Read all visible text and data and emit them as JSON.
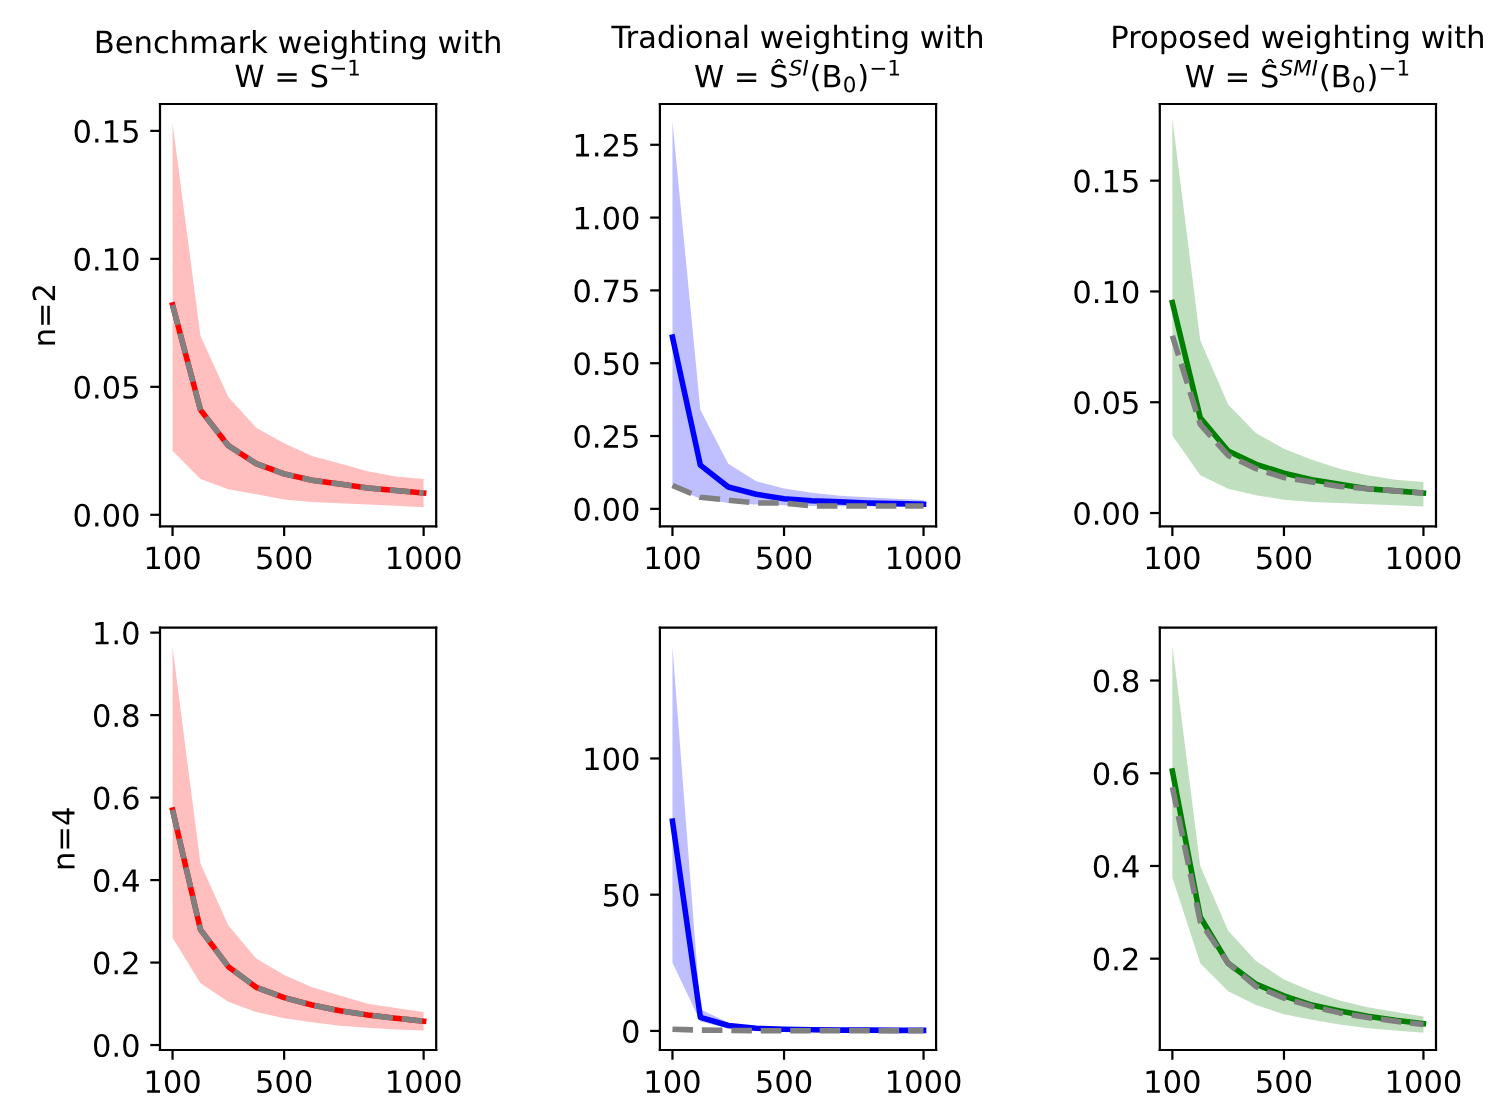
{
  "chart_data": [
    {
      "type": "line",
      "title": "Benchmark weighting with\nW = S$^{−1}$",
      "ylabel": "n=2",
      "x": [
        100,
        200,
        300,
        400,
        500,
        600,
        700,
        800,
        900,
        1000
      ],
      "xlim": [
        55,
        1045
      ],
      "xticks": [
        100,
        500,
        1000
      ],
      "ylim": [
        -0.0045,
        0.1605
      ],
      "yticks": [
        {
          "value": 0,
          "label": "0.00"
        },
        {
          "value": 0.05,
          "label": "0.05"
        },
        {
          "value": 0.1,
          "label": "0.10"
        },
        {
          "value": 0.15,
          "label": "0.15"
        }
      ],
      "grid": false,
      "series": [
        {
          "color": "#ff0000",
          "line_style": "solid",
          "values": [
            0.082,
            0.041,
            0.027,
            0.02,
            0.016,
            0.0135,
            0.012,
            0.0105,
            0.0095,
            0.0085
          ],
          "lower": [
            0.025,
            0.014,
            0.01,
            0.008,
            0.006,
            0.005,
            0.0045,
            0.004,
            0.0035,
            0.003
          ],
          "upper": [
            0.153,
            0.07,
            0.046,
            0.034,
            0.028,
            0.023,
            0.02,
            0.017,
            0.015,
            0.014
          ]
        },
        {
          "color": "#808080",
          "line_style": "dashed",
          "values": [
            0.082,
            0.041,
            0.027,
            0.02,
            0.016,
            0.0135,
            0.012,
            0.0105,
            0.0095,
            0.0085
          ]
        }
      ]
    },
    {
      "type": "line",
      "title": "Tradional weighting with\nW = Ŝ$^{SI}$(B$_{0}$)$^{−1}$",
      "x": [
        100,
        200,
        300,
        400,
        500,
        600,
        700,
        800,
        900,
        1000
      ],
      "xlim": [
        55,
        1045
      ],
      "xticks": [
        100,
        500,
        1000
      ],
      "ylim": [
        -0.06,
        1.39
      ],
      "yticks": [
        {
          "value": 0,
          "label": "0.00"
        },
        {
          "value": 0.25,
          "label": "0.25"
        },
        {
          "value": 0.5,
          "label": "0.50"
        },
        {
          "value": 0.75,
          "label": "0.75"
        },
        {
          "value": 1.0,
          "label": "1.00"
        },
        {
          "value": 1.25,
          "label": "1.25"
        }
      ],
      "grid": false,
      "series": [
        {
          "color": "#0000ff",
          "line_style": "solid",
          "values": [
            0.59,
            0.15,
            0.075,
            0.05,
            0.035,
            0.028,
            0.024,
            0.02,
            0.018,
            0.016
          ],
          "lower": [
            0.075,
            0.035,
            0.02,
            0.015,
            0.012,
            0.01,
            0.009,
            0.008,
            0.007,
            0.006
          ],
          "upper": [
            1.33,
            0.34,
            0.155,
            0.095,
            0.07,
            0.055,
            0.045,
            0.04,
            0.035,
            0.03
          ]
        },
        {
          "color": "#808080",
          "line_style": "dashed",
          "values": [
            0.08,
            0.04,
            0.03,
            0.02,
            0.02,
            0.01,
            0.01,
            0.01,
            0.01,
            0.01
          ]
        }
      ]
    },
    {
      "type": "line",
      "title": "Proposed weighting with\nW = Ŝ$^{SMI}$(B$_{0}$)$^{−1}$",
      "x": [
        100,
        200,
        300,
        400,
        500,
        600,
        700,
        800,
        900,
        1000
      ],
      "xlim": [
        55,
        1045
      ],
      "xticks": [
        100,
        500,
        1000
      ],
      "ylim": [
        -0.006,
        0.1846
      ],
      "yticks": [
        {
          "value": 0,
          "label": "0.00"
        },
        {
          "value": 0.05,
          "label": "0.05"
        },
        {
          "value": 0.1,
          "label": "0.10"
        },
        {
          "value": 0.15,
          "label": "0.15"
        }
      ],
      "grid": false,
      "series": [
        {
          "color": "#008000",
          "line_style": "solid",
          "values": [
            0.095,
            0.043,
            0.028,
            0.022,
            0.018,
            0.015,
            0.013,
            0.011,
            0.01,
            0.009
          ],
          "lower": [
            0.035,
            0.017,
            0.011,
            0.008,
            0.006,
            0.005,
            0.0045,
            0.004,
            0.0035,
            0.003
          ],
          "upper": [
            0.178,
            0.078,
            0.049,
            0.036,
            0.029,
            0.024,
            0.02,
            0.017,
            0.015,
            0.014
          ]
        },
        {
          "color": "#808080",
          "line_style": "dashed",
          "values": [
            0.08,
            0.04,
            0.026,
            0.02,
            0.016,
            0.014,
            0.012,
            0.011,
            0.01,
            0.009
          ]
        }
      ]
    },
    {
      "type": "line",
      "ylabel": "n=4",
      "x": [
        100,
        200,
        300,
        400,
        500,
        600,
        700,
        800,
        900,
        1000
      ],
      "xlim": [
        55,
        1045
      ],
      "xticks": [
        100,
        500,
        1000
      ],
      "ylim": [
        -0.012,
        1.012
      ],
      "yticks": [
        {
          "value": 0,
          "label": "0.0"
        },
        {
          "value": 0.2,
          "label": "0.2"
        },
        {
          "value": 0.4,
          "label": "0.4"
        },
        {
          "value": 0.6,
          "label": "0.6"
        },
        {
          "value": 0.8,
          "label": "0.8"
        },
        {
          "value": 1.0,
          "label": "1.0"
        }
      ],
      "grid": false,
      "series": [
        {
          "color": "#ff0000",
          "line_style": "solid",
          "values": [
            0.57,
            0.28,
            0.19,
            0.14,
            0.115,
            0.097,
            0.083,
            0.073,
            0.065,
            0.058
          ],
          "lower": [
            0.26,
            0.15,
            0.105,
            0.08,
            0.065,
            0.055,
            0.047,
            0.042,
            0.038,
            0.035
          ],
          "upper": [
            0.965,
            0.44,
            0.29,
            0.21,
            0.17,
            0.14,
            0.12,
            0.1,
            0.09,
            0.08
          ]
        },
        {
          "color": "#808080",
          "line_style": "dashed",
          "values": [
            0.57,
            0.28,
            0.19,
            0.14,
            0.115,
            0.097,
            0.083,
            0.073,
            0.065,
            0.058
          ]
        }
      ]
    },
    {
      "type": "line",
      "x": [
        100,
        200,
        300,
        400,
        500,
        600,
        700,
        800,
        900,
        1000
      ],
      "xlim": [
        55,
        1045
      ],
      "xticks": [
        100,
        500,
        1000
      ],
      "ylim": [
        -7,
        148
      ],
      "yticks": [
        0,
        50,
        100
      ],
      "grid": false,
      "series": [
        {
          "color": "#0000ff",
          "line_style": "solid",
          "values": [
            77,
            5,
            2,
            1,
            0.6,
            0.4,
            0.3,
            0.3,
            0.2,
            0.2
          ],
          "lower": [
            25,
            3.5,
            1,
            0.5,
            0.3,
            0.2,
            0.15,
            0.1,
            0.1,
            0.1
          ],
          "upper": [
            141,
            8,
            3,
            1.5,
            1,
            0.8,
            0.6,
            0.5,
            0.4,
            0.3
          ]
        },
        {
          "color": "#808080",
          "line_style": "dashed",
          "values": [
            0.6,
            0.3,
            0.2,
            0.1,
            0.1,
            0.1,
            0.1,
            0.1,
            0.1,
            0.1
          ]
        }
      ]
    },
    {
      "type": "line",
      "x": [
        100,
        200,
        300,
        400,
        500,
        600,
        700,
        800,
        900,
        1000
      ],
      "xlim": [
        55,
        1045
      ],
      "xticks": [
        100,
        500,
        1000
      ],
      "ylim": [
        0.003,
        0.914
      ],
      "yticks": [
        0.2,
        0.4,
        0.6,
        0.8
      ],
      "grid": false,
      "series": [
        {
          "color": "#008000",
          "line_style": "solid",
          "values": [
            0.605,
            0.29,
            0.19,
            0.145,
            0.12,
            0.1,
            0.087,
            0.076,
            0.067,
            0.06
          ],
          "lower": [
            0.375,
            0.19,
            0.13,
            0.1,
            0.08,
            0.068,
            0.058,
            0.05,
            0.045,
            0.04
          ],
          "upper": [
            0.875,
            0.4,
            0.26,
            0.195,
            0.155,
            0.13,
            0.11,
            0.095,
            0.085,
            0.075
          ]
        },
        {
          "color": "#808080",
          "line_style": "dashed",
          "values": [
            0.57,
            0.28,
            0.19,
            0.14,
            0.115,
            0.097,
            0.083,
            0.073,
            0.065,
            0.058
          ]
        }
      ]
    }
  ]
}
